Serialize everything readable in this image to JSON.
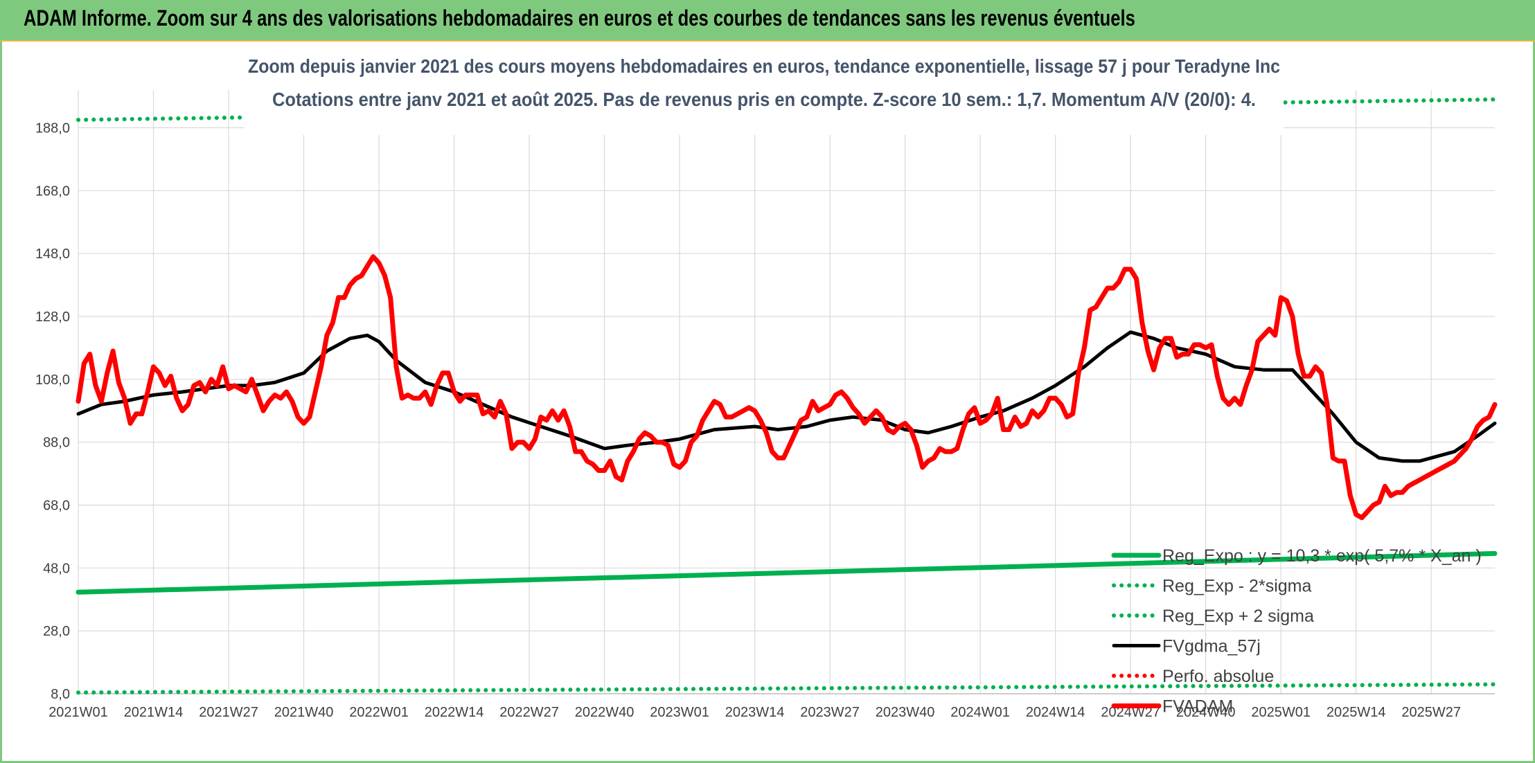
{
  "header": {
    "title": "ADAM Informe. Zoom sur 4 ans des valorisations hebdomadaires en euros et des courbes de tendances sans les revenus éventuels"
  },
  "chart_data": {
    "type": "line",
    "title": "Zoom depuis janvier 2021 des cours moyens hebdomadaires en euros, tendance exponentielle, lissage 57 j pour Teradyne Inc",
    "subtitle": "Cotations entre janv 2021 et août 2025. Pas de revenus pris en compte. Z-score 10 sem.: 1,7. Momentum A/V (20/0): 4.",
    "xlabel": "",
    "ylabel": "",
    "ylim": [
      8.0,
      200.0
    ],
    "y_ticks": [
      "8,0",
      "28,0",
      "48,0",
      "68,0",
      "88,0",
      "108,0",
      "128,0",
      "148,0",
      "168,0",
      "188,0"
    ],
    "y_tick_values": [
      8,
      28,
      48,
      68,
      88,
      108,
      128,
      148,
      168,
      188
    ],
    "x_ticks": [
      "2021W01",
      "2021W14",
      "2021W27",
      "2021W40",
      "2022W01",
      "2022W14",
      "2022W27",
      "2022W40",
      "2023W01",
      "2023W14",
      "2023W27",
      "2023W40",
      "2024W01",
      "2024W14",
      "2024W27",
      "2024W40",
      "2025W01",
      "2025W14",
      "2025W27"
    ],
    "x_tick_index": [
      0,
      13,
      26,
      39,
      52,
      65,
      78,
      91,
      104,
      117,
      130,
      143,
      156,
      169,
      182,
      195,
      208,
      221,
      234
    ],
    "week_count": 246,
    "grid": true,
    "legend_position": "bottom-right",
    "series": [
      {
        "name": "Reg_Expo : y = 10,3 * exp( 5,7% * X_an )",
        "color": "#00b050",
        "style": "solid-thick",
        "x": [
          0,
          245
        ],
        "values": [
          40.3,
          52.6
        ]
      },
      {
        "name": "Reg_Exp - 2*sigma",
        "color": "#00b050",
        "style": "dotted",
        "x": [
          0,
          245
        ],
        "values": [
          8.4,
          11.0
        ]
      },
      {
        "name": "Reg_Exp + 2 sigma",
        "color": "#00b050",
        "style": "dotted",
        "x": [
          0,
          245
        ],
        "values": [
          190.5,
          197.0
        ]
      },
      {
        "name": "FVgdma_57j",
        "color": "#000000",
        "style": "solid",
        "x": [
          0,
          4,
          8,
          13,
          18,
          26,
          30,
          34,
          39,
          43,
          47,
          50,
          52,
          55,
          60,
          65,
          70,
          75,
          80,
          85,
          91,
          95,
          100,
          104,
          110,
          117,
          121,
          126,
          130,
          134,
          139,
          143,
          147,
          151,
          156,
          160,
          165,
          169,
          174,
          178,
          182,
          186,
          190,
          195,
          200,
          205,
          210,
          213,
          217,
          221,
          225,
          229,
          232,
          238,
          242,
          245
        ],
        "values": [
          97,
          100,
          101,
          103,
          104,
          106,
          106,
          107,
          110,
          117,
          121,
          122,
          120,
          114,
          107,
          104,
          100,
          96,
          93,
          90,
          86,
          87,
          88,
          89,
          92,
          93,
          92,
          93,
          95,
          96,
          95,
          92,
          91,
          93,
          96,
          98,
          102,
          106,
          112,
          118,
          123,
          121,
          118,
          116,
          112,
          111,
          111,
          105,
          97,
          88,
          83,
          82,
          82,
          85,
          90,
          94
        ]
      },
      {
        "name": "Perfo. absolue",
        "color": "#ff0000",
        "style": "dotted",
        "x": [],
        "values": []
      },
      {
        "name": "FVADAM",
        "color": "#ff0000",
        "style": "solid-thick",
        "x": [
          0,
          1,
          2,
          3,
          4,
          5,
          6,
          7,
          8,
          9,
          10,
          11,
          12,
          13,
          14,
          15,
          16,
          17,
          18,
          19,
          20,
          21,
          22,
          23,
          24,
          25,
          26,
          27,
          28,
          29,
          30,
          31,
          32,
          33,
          34,
          35,
          36,
          37,
          38,
          39,
          40,
          41,
          42,
          43,
          44,
          45,
          46,
          47,
          48,
          49,
          50,
          51,
          52,
          53,
          54,
          55,
          56,
          57,
          58,
          59,
          60,
          61,
          62,
          63,
          64,
          65,
          66,
          67,
          68,
          69,
          70,
          71,
          72,
          73,
          74,
          75,
          76,
          77,
          78,
          79,
          80,
          81,
          82,
          83,
          84,
          85,
          86,
          87,
          88,
          89,
          90,
          91,
          92,
          93,
          94,
          95,
          96,
          97,
          98,
          99,
          100,
          101,
          102,
          103,
          104,
          105,
          106,
          107,
          108,
          109,
          110,
          111,
          112,
          113,
          114,
          115,
          116,
          117,
          118,
          119,
          120,
          121,
          122,
          123,
          124,
          125,
          126,
          127,
          128,
          129,
          130,
          131,
          132,
          133,
          134,
          135,
          136,
          137,
          138,
          139,
          140,
          141,
          142,
          143,
          144,
          145,
          146,
          147,
          148,
          149,
          150,
          151,
          152,
          153,
          154,
          155,
          156,
          157,
          158,
          159,
          160,
          161,
          162,
          163,
          164,
          165,
          166,
          167,
          168,
          169,
          170,
          171,
          172,
          173,
          174,
          175,
          176,
          177,
          178,
          179,
          180,
          181,
          182,
          183,
          184,
          185,
          186,
          187,
          188,
          189,
          190,
          191,
          192,
          193,
          194,
          195,
          196,
          197,
          198,
          199,
          200,
          201,
          202,
          203,
          204,
          205,
          206,
          207,
          208,
          209,
          210,
          211,
          212,
          213,
          214,
          215,
          216,
          217,
          218,
          219,
          220,
          221,
          222,
          223,
          224,
          225,
          226,
          227,
          228,
          229,
          230,
          231,
          232,
          233,
          234,
          235,
          236,
          237,
          238,
          239,
          240,
          241,
          242,
          243,
          244,
          245
        ],
        "values": [
          101,
          113,
          116,
          106,
          101,
          110,
          117,
          107,
          102,
          94,
          97,
          97,
          104,
          112,
          110,
          106,
          109,
          102,
          98,
          100,
          106,
          107,
          104,
          108,
          106,
          112,
          105,
          106,
          105,
          104,
          108,
          103,
          98,
          101,
          103,
          102,
          104,
          101,
          96,
          94,
          96,
          104,
          112,
          122,
          126,
          134,
          134,
          138,
          140,
          141,
          144,
          147,
          145,
          141,
          134,
          112,
          102,
          103,
          102,
          102,
          104,
          100,
          106,
          110,
          110,
          104,
          101,
          103,
          103,
          103,
          97,
          98,
          96,
          101,
          97,
          86,
          88,
          88,
          86,
          89,
          96,
          95,
          98,
          95,
          98,
          93,
          85,
          85,
          82,
          81,
          79,
          79,
          82,
          77,
          76,
          82,
          85,
          89,
          91,
          90,
          88,
          88,
          87,
          81,
          80,
          82,
          88,
          90,
          95,
          98,
          101,
          100,
          96,
          96,
          97,
          98,
          99,
          98,
          95,
          91,
          85,
          83,
          83,
          87,
          91,
          95,
          96,
          101,
          98,
          99,
          100,
          103,
          104,
          102,
          99,
          97,
          94,
          96,
          98,
          96,
          92,
          91,
          93,
          94,
          92,
          87,
          80,
          82,
          83,
          86,
          85,
          85,
          86,
          92,
          97,
          99,
          94,
          95,
          97,
          102,
          92,
          92,
          96,
          93,
          94,
          98,
          96,
          98,
          102,
          102,
          100,
          96,
          97,
          110,
          118,
          130,
          131,
          134,
          137,
          137,
          139,
          143,
          143,
          140,
          126,
          117,
          111,
          118,
          121,
          121,
          115,
          116,
          116,
          119,
          119,
          118,
          119,
          109,
          102,
          100,
          102,
          100,
          106,
          111,
          120,
          122,
          124,
          122,
          134,
          133,
          128,
          116,
          109,
          109,
          112,
          110,
          100,
          83,
          82,
          82,
          71,
          65,
          64,
          66,
          68,
          69,
          74,
          71,
          72,
          72,
          74,
          75,
          76,
          77,
          78,
          79,
          80,
          81,
          82,
          84,
          86,
          89,
          93,
          95,
          96,
          100
        ]
      }
    ]
  }
}
